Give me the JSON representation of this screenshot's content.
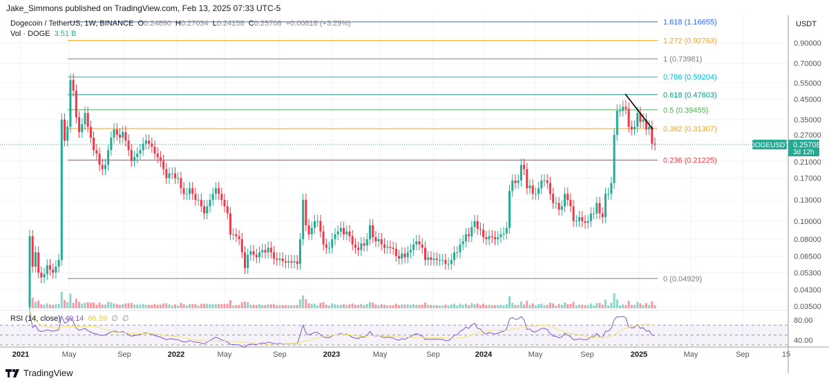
{
  "header": {
    "published": "Jake_Simmons published on TradingView.com, Feb 13, 2025 07:33 UTC-5"
  },
  "legend": {
    "symbol": "Dogecoin / TetherUS, 1W, BINANCE",
    "open_label": "O",
    "open": "0.24890",
    "high_label": "H",
    "high": "0.27034",
    "low_label": "L",
    "low": "0.24158",
    "close_label": "C",
    "close": "0.25708",
    "change": "+0.00818 (+3.29%)",
    "vol_label": "Vol · DOGE",
    "vol": "3.51 B"
  },
  "rsi_legend": {
    "label": "RSI (14, close)",
    "value": "49.14",
    "ma_value": "66.59",
    "na1": "∅",
    "na2": "∅"
  },
  "price_axis": {
    "unit": "USDT",
    "ticks": [
      "0.90000",
      "0.70000",
      "0.55000",
      "0.45000",
      "0.35000",
      "0.27000",
      "0.21000",
      "0.17000",
      "0.13000",
      "0.10000",
      "0.08000",
      "0.06500",
      "0.05300",
      "0.04300",
      "0.03500"
    ]
  },
  "rsi_axis": {
    "ticks": [
      "80.00",
      "40.00"
    ]
  },
  "time_axis": {
    "labels": [
      "2021",
      "May",
      "Sep",
      "2022",
      "May",
      "Sep",
      "2023",
      "May",
      "Sep",
      "2024",
      "May",
      "Sep",
      "2025",
      "May",
      "Sep",
      "15"
    ]
  },
  "last_price": {
    "symbol": "DOGEUSDT",
    "price": "0.25708",
    "countdown": "3d 12h",
    "color": "#22ab94"
  },
  "brand": {
    "name": "TradingView"
  },
  "colors": {
    "up": "#22ab94",
    "down": "#f23645",
    "rsi": "#7e57c2",
    "rsi_ma": "#f5e46b",
    "trendline": "#000000"
  },
  "chart_data": {
    "type": "candlestick",
    "symbol": "DOGEUSDT",
    "interval": "1W",
    "y_scale": "log",
    "ylim": [
      0.035,
      1.2
    ],
    "first_candle_week": "2021-01-25",
    "open_first": 0.035,
    "closes": [
      0.083,
      0.057,
      0.068,
      0.053,
      0.05,
      0.052,
      0.058,
      0.055,
      0.053,
      0.057,
      0.062,
      0.35,
      0.27,
      0.32,
      0.57,
      0.5,
      0.36,
      0.3,
      0.33,
      0.38,
      0.32,
      0.28,
      0.24,
      0.23,
      0.2,
      0.19,
      0.2,
      0.24,
      0.28,
      0.31,
      0.29,
      0.28,
      0.3,
      0.27,
      0.24,
      0.21,
      0.22,
      0.23,
      0.24,
      0.26,
      0.27,
      0.26,
      0.25,
      0.23,
      0.22,
      0.21,
      0.19,
      0.17,
      0.18,
      0.18,
      0.17,
      0.17,
      0.15,
      0.14,
      0.14,
      0.15,
      0.14,
      0.13,
      0.13,
      0.12,
      0.11,
      0.12,
      0.13,
      0.14,
      0.15,
      0.14,
      0.13,
      0.12,
      0.11,
      0.085,
      0.085,
      0.083,
      0.08,
      0.068,
      0.056,
      0.066,
      0.069,
      0.066,
      0.064,
      0.068,
      0.07,
      0.068,
      0.072,
      0.068,
      0.063,
      0.062,
      0.063,
      0.061,
      0.06,
      0.061,
      0.06,
      0.061,
      0.059,
      0.08,
      0.13,
      0.095,
      0.085,
      0.092,
      0.1,
      0.1,
      0.088,
      0.075,
      0.072,
      0.072,
      0.08,
      0.085,
      0.088,
      0.092,
      0.085,
      0.088,
      0.083,
      0.075,
      0.072,
      0.07,
      0.076,
      0.074,
      0.08,
      0.095,
      0.082,
      0.078,
      0.08,
      0.075,
      0.072,
      0.073,
      0.072,
      0.071,
      0.065,
      0.063,
      0.067,
      0.064,
      0.068,
      0.07,
      0.075,
      0.078,
      0.075,
      0.072,
      0.062,
      0.064,
      0.062,
      0.063,
      0.062,
      0.062,
      0.062,
      0.059,
      0.059,
      0.062,
      0.068,
      0.068,
      0.075,
      0.078,
      0.085,
      0.083,
      0.093,
      0.1,
      0.091,
      0.09,
      0.082,
      0.08,
      0.083,
      0.082,
      0.08,
      0.082,
      0.085,
      0.086,
      0.092,
      0.145,
      0.165,
      0.16,
      0.165,
      0.2,
      0.19,
      0.15,
      0.155,
      0.14,
      0.14,
      0.15,
      0.165,
      0.165,
      0.16,
      0.14,
      0.125,
      0.125,
      0.115,
      0.12,
      0.14,
      0.13,
      0.12,
      0.1,
      0.1,
      0.105,
      0.1,
      0.098,
      0.1,
      0.11,
      0.11,
      0.125,
      0.11,
      0.105,
      0.14,
      0.14,
      0.16,
      0.29,
      0.39,
      0.39,
      0.41,
      0.4,
      0.32,
      0.31,
      0.32,
      0.38,
      0.34,
      0.35,
      0.31,
      0.32,
      0.26,
      0.257
    ],
    "fib_levels": [
      {
        "ratio": "1.618",
        "price": 1.16655,
        "label": "1.618 (1.16655)",
        "color": "#2962ff"
      },
      {
        "ratio": "1.272",
        "price": 0.92763,
        "label": "1.272 (0.92763)",
        "color": "#f7a21b"
      },
      {
        "ratio": "1",
        "price": 0.73981,
        "label": "1 (0.73981)",
        "color": "#787b86"
      },
      {
        "ratio": "0.786",
        "price": 0.59204,
        "label": "0.786 (0.59204)",
        "color": "#00bcd4"
      },
      {
        "ratio": "0.618",
        "price": 0.47603,
        "label": "0.618 (0.47603)",
        "color": "#089981"
      },
      {
        "ratio": "0.5",
        "price": 0.39455,
        "label": "0.5 (0.39455)",
        "color": "#4caf50"
      },
      {
        "ratio": "0.382",
        "price": 0.31307,
        "label": "0.382 (0.31307)",
        "color": "#f7a21b"
      },
      {
        "ratio": "0.236",
        "price": 0.21225,
        "label": "0.236 (0.21225)",
        "color": "#f23645"
      },
      {
        "ratio": "0",
        "price": 0.04929,
        "label": "0 (0.04929)",
        "color": "#787b86"
      }
    ],
    "trendline": {
      "from_price": 0.48,
      "to_price": 0.31
    },
    "rsi_bands": [
      70,
      50,
      30
    ]
  }
}
